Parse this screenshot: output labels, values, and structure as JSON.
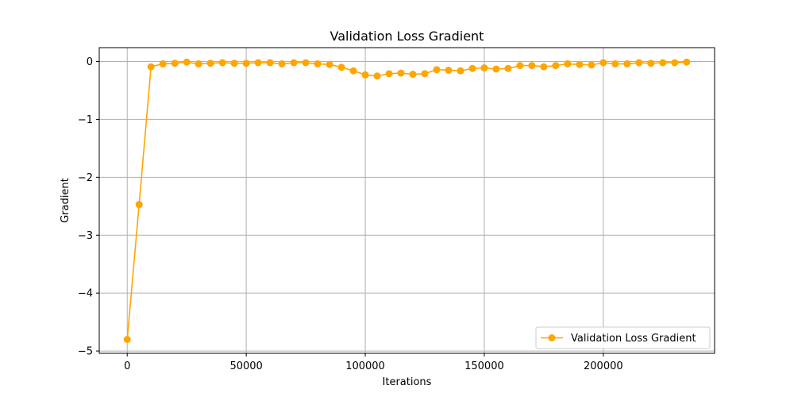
{
  "chart_data": {
    "type": "line",
    "title": "Validation Loss Gradient",
    "xlabel": "Iterations",
    "ylabel": "Gradient",
    "xlim": [
      -11750,
      246750
    ],
    "ylim": [
      -5.04,
      0.24
    ],
    "xticks": [
      0,
      50000,
      100000,
      150000,
      200000
    ],
    "xtick_labels": [
      "0",
      "50000",
      "100000",
      "150000",
      "200000"
    ],
    "yticks": [
      0,
      -1,
      -2,
      -3,
      -4,
      -5
    ],
    "ytick_labels": [
      "0",
      "−1",
      "−2",
      "−3",
      "−4",
      "−5"
    ],
    "grid": true,
    "legend_position": "lower-right",
    "series": [
      {
        "name": "Validation Loss Gradient",
        "color": "#ffa500",
        "marker": "circle",
        "x": [
          0,
          5000,
          10000,
          15000,
          20000,
          25000,
          30000,
          35000,
          40000,
          45000,
          50000,
          55000,
          60000,
          65000,
          70000,
          75000,
          80000,
          85000,
          90000,
          95000,
          100000,
          105000,
          110000,
          115000,
          120000,
          125000,
          130000,
          135000,
          140000,
          145000,
          150000,
          155000,
          160000,
          165000,
          170000,
          175000,
          180000,
          185000,
          190000,
          195000,
          200000,
          205000,
          210000,
          215000,
          220000,
          225000,
          230000,
          235000
        ],
        "values": [
          -4.8,
          -2.47,
          -0.09,
          -0.04,
          -0.03,
          -0.01,
          -0.04,
          -0.03,
          -0.02,
          -0.03,
          -0.03,
          -0.02,
          -0.02,
          -0.04,
          -0.02,
          -0.02,
          -0.04,
          -0.05,
          -0.1,
          -0.16,
          -0.23,
          -0.25,
          -0.21,
          -0.2,
          -0.22,
          -0.21,
          -0.14,
          -0.15,
          -0.16,
          -0.12,
          -0.11,
          -0.13,
          -0.12,
          -0.07,
          -0.07,
          -0.09,
          -0.07,
          -0.04,
          -0.05,
          -0.06,
          -0.02,
          -0.04,
          -0.04,
          -0.02,
          -0.03,
          -0.02,
          -0.02,
          -0.01
        ]
      }
    ]
  }
}
